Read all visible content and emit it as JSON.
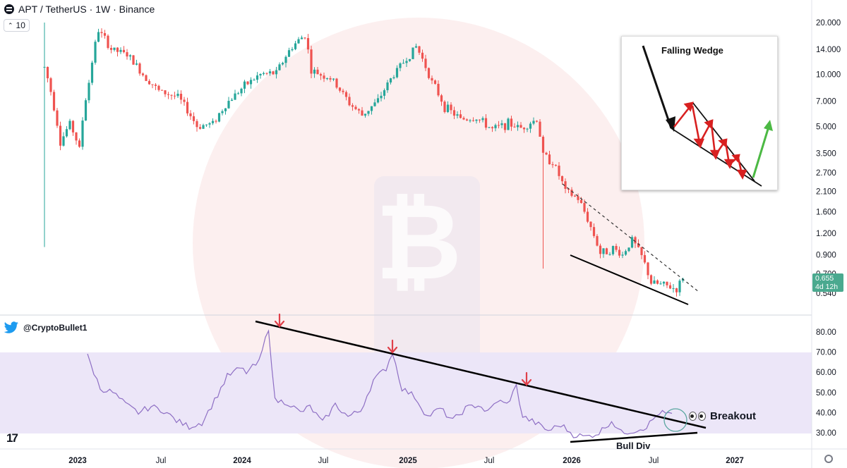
{
  "header": {
    "title": "APT / TetherUS · 1W · Binance",
    "indicator_count": "10"
  },
  "price_tag": {
    "price": "0.655",
    "countdown": "4d 12h"
  },
  "twitter_handle": "@CryptoBullet1",
  "annotations": {
    "breakout": "Breakout",
    "bull_div": "Bull Div",
    "falling_wedge": "Falling Wedge"
  },
  "colors": {
    "up": "#26a69a",
    "down": "#ef5350",
    "rsi_line": "#8e6fc4",
    "rsi_band": "#ebe5f7",
    "arrow": "#e0404a",
    "watermark": "#f8dada"
  },
  "icons": [
    "symbol-icon",
    "twitter-bird-icon",
    "eyes-icon",
    "tradingview-logo-icon",
    "settings-gear-icon",
    "bitcoin-watermark-icon"
  ],
  "chart_data": [
    {
      "type": "candlestick",
      "scale": "log",
      "price_ticks": [
        20.0,
        14.0,
        10.0,
        7.0,
        5.0,
        3.5,
        2.7,
        2.1,
        1.6,
        1.2,
        0.9,
        0.7,
        0.54
      ],
      "price_tick_labels": [
        "20.000",
        "14.000",
        "10.000",
        "7.000",
        "5.000",
        "3.500",
        "2.700",
        "2.100",
        "1.600",
        "1.200",
        "0.900",
        "0.700",
        "0.540"
      ],
      "x_axis_labels": [
        "2023",
        "Jul",
        "2024",
        "Jul",
        "2025",
        "Jul",
        "2026",
        "Jul",
        "2027"
      ],
      "last_price": 0.655,
      "price_path": [
        {
          "t": 0,
          "p": 11
        },
        {
          "t": 3,
          "p": 6.5
        },
        {
          "t": 5,
          "p": 4
        },
        {
          "t": 8,
          "p": 5.2
        },
        {
          "t": 11,
          "p": 3.7
        },
        {
          "t": 14,
          "p": 9
        },
        {
          "t": 17,
          "p": 18
        },
        {
          "t": 21,
          "p": 14
        },
        {
          "t": 26,
          "p": 13
        },
        {
          "t": 31,
          "p": 10
        },
        {
          "t": 36,
          "p": 8
        },
        {
          "t": 42,
          "p": 7.4
        },
        {
          "t": 48,
          "p": 5
        },
        {
          "t": 53,
          "p": 5.2
        },
        {
          "t": 58,
          "p": 7
        },
        {
          "t": 63,
          "p": 8.6
        },
        {
          "t": 68,
          "p": 10
        },
        {
          "t": 73,
          "p": 10.2
        },
        {
          "t": 78,
          "p": 14.5
        },
        {
          "t": 82,
          "p": 17
        },
        {
          "t": 84,
          "p": 10.5
        },
        {
          "t": 90,
          "p": 9.5
        },
        {
          "t": 96,
          "p": 6.8
        },
        {
          "t": 100,
          "p": 5.8
        },
        {
          "t": 105,
          "p": 7
        },
        {
          "t": 110,
          "p": 10
        },
        {
          "t": 115,
          "p": 13
        },
        {
          "t": 117,
          "p": 14.5
        },
        {
          "t": 122,
          "p": 9
        },
        {
          "t": 126,
          "p": 6.5
        },
        {
          "t": 131,
          "p": 5.5
        },
        {
          "t": 136,
          "p": 5.6
        },
        {
          "t": 141,
          "p": 4.8
        },
        {
          "t": 146,
          "p": 5.2
        },
        {
          "t": 150,
          "p": 4.9
        },
        {
          "t": 155,
          "p": 5.5
        },
        {
          "t": 157,
          "p": 3.4
        },
        {
          "t": 160,
          "p": 3.1
        },
        {
          "t": 164,
          "p": 2.1
        },
        {
          "t": 168,
          "p": 1.9
        },
        {
          "t": 172,
          "p": 1.3
        },
        {
          "t": 175,
          "p": 0.92
        },
        {
          "t": 179,
          "p": 0.98
        },
        {
          "t": 182,
          "p": 0.9
        },
        {
          "t": 185,
          "p": 1.1
        },
        {
          "t": 188,
          "p": 0.88
        },
        {
          "t": 191,
          "p": 0.62
        },
        {
          "t": 195,
          "p": 0.6
        },
        {
          "t": 199,
          "p": 0.57
        },
        {
          "t": 201,
          "p": 0.655
        }
      ]
    },
    {
      "type": "line",
      "name": "RSI",
      "y_ticks": [
        80,
        70,
        60,
        50,
        40,
        30
      ],
      "y_tick_labels": [
        "80.00",
        "70.00",
        "60.00",
        "50.00",
        "40.00",
        "30.00"
      ],
      "band": [
        30,
        70
      ],
      "rsi_path": [
        {
          "t": 0,
          "v": 68
        },
        {
          "t": 4,
          "v": 52
        },
        {
          "t": 8,
          "v": 50
        },
        {
          "t": 12,
          "v": 44
        },
        {
          "t": 16,
          "v": 40
        },
        {
          "t": 20,
          "v": 43
        },
        {
          "t": 24,
          "v": 41
        },
        {
          "t": 28,
          "v": 36
        },
        {
          "t": 32,
          "v": 33
        },
        {
          "t": 36,
          "v": 35
        },
        {
          "t": 40,
          "v": 46
        },
        {
          "t": 44,
          "v": 58
        },
        {
          "t": 48,
          "v": 62
        },
        {
          "t": 50,
          "v": 60
        },
        {
          "t": 54,
          "v": 65
        },
        {
          "t": 57,
          "v": 82
        },
        {
          "t": 59,
          "v": 46
        },
        {
          "t": 63,
          "v": 45
        },
        {
          "t": 67,
          "v": 40
        },
        {
          "t": 70,
          "v": 43
        },
        {
          "t": 74,
          "v": 35
        },
        {
          "t": 78,
          "v": 44
        },
        {
          "t": 82,
          "v": 38
        },
        {
          "t": 86,
          "v": 41
        },
        {
          "t": 90,
          "v": 56
        },
        {
          "t": 94,
          "v": 62
        },
        {
          "t": 96,
          "v": 70
        },
        {
          "t": 99,
          "v": 52
        },
        {
          "t": 103,
          "v": 48
        },
        {
          "t": 107,
          "v": 38
        },
        {
          "t": 111,
          "v": 42
        },
        {
          "t": 115,
          "v": 36
        },
        {
          "t": 119,
          "v": 42
        },
        {
          "t": 123,
          "v": 44
        },
        {
          "t": 126,
          "v": 40
        },
        {
          "t": 129,
          "v": 46
        },
        {
          "t": 132,
          "v": 44
        },
        {
          "t": 135,
          "v": 53
        },
        {
          "t": 137,
          "v": 38
        },
        {
          "t": 141,
          "v": 35
        },
        {
          "t": 145,
          "v": 31
        },
        {
          "t": 149,
          "v": 34
        },
        {
          "t": 153,
          "v": 29
        },
        {
          "t": 157,
          "v": 28
        },
        {
          "t": 161,
          "v": 30
        },
        {
          "t": 165,
          "v": 36
        },
        {
          "t": 168,
          "v": 30
        },
        {
          "t": 172,
          "v": 31
        },
        {
          "t": 176,
          "v": 33
        },
        {
          "t": 180,
          "v": 40
        },
        {
          "t": 184,
          "v": 39
        }
      ]
    }
  ]
}
